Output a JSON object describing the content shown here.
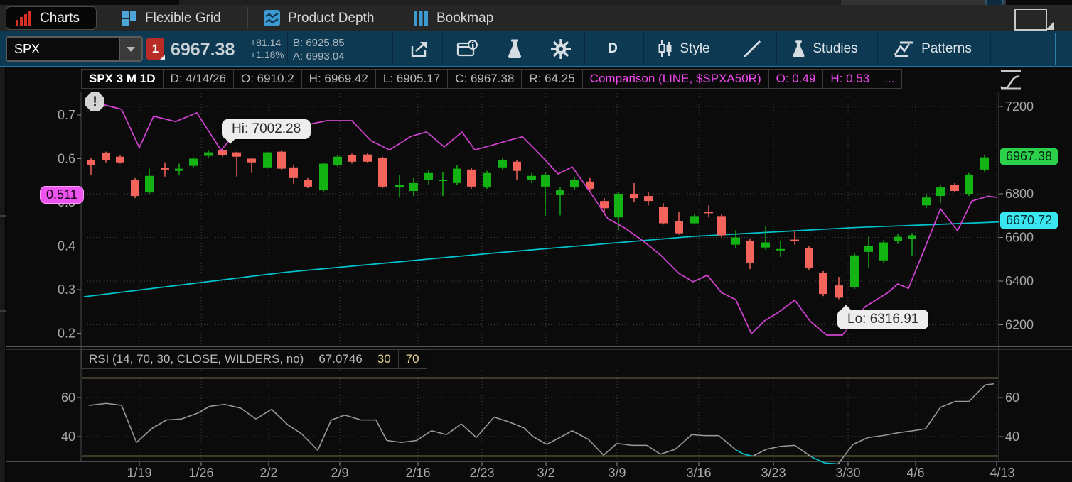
{
  "window": {
    "tabs": [
      {
        "label": "Charts",
        "active": true
      },
      {
        "label": "Flexible Grid",
        "active": false
      },
      {
        "label": "Product Depth",
        "active": false
      },
      {
        "label": "Bookmap",
        "active": false
      }
    ]
  },
  "toolbar": {
    "symbol": "SPX",
    "alert_badge": "1",
    "last_price": "6967.38",
    "change": "+81.14",
    "change_pct": "+1.18%",
    "bid": "B: 6925.85",
    "ask": "A: 6993.04",
    "timeframe_label": "D",
    "style_label": "Style",
    "studies_label": "Studies",
    "patterns_label": "Patterns"
  },
  "chart_header": {
    "title": "SPX 3 M 1D",
    "fields": [
      "D: 4/14/26",
      "O: 6910.2",
      "H: 6969.42",
      "L: 6905.17",
      "C: 6967.38",
      "R: 64.25"
    ],
    "comparison_fields": [
      "Comparison (LINE, $SPXA50R)",
      "O: 0.49",
      "H: 0.53",
      "..."
    ]
  },
  "main_chart": {
    "hi_tooltip": "Hi: 7002.28",
    "lo_tooltip": "Lo: 6316.91",
    "last_price_bubble": "6967.38",
    "ma_bubble": "6670.72",
    "comparison_bubble": "0.511",
    "right_axis_ticks": [
      {
        "v": 7200,
        "label": "7200"
      },
      {
        "v": 6800,
        "label": "6800"
      },
      {
        "v": 6600,
        "label": "6600"
      },
      {
        "v": 6400,
        "label": "6400"
      },
      {
        "v": 6200,
        "label": "6200"
      }
    ],
    "price_gridlines": [
      7200,
      7000,
      6800,
      6600,
      6400,
      6200
    ],
    "left_axis_ticks": [
      {
        "v": 0.7,
        "label": "0.7"
      },
      {
        "v": 0.6,
        "label": "0.6"
      },
      {
        "v": 0.5,
        "label": "0.5"
      },
      {
        "v": 0.4,
        "label": "0.4"
      },
      {
        "v": 0.3,
        "label": "0.3"
      },
      {
        "v": 0.2,
        "label": "0.2"
      }
    ],
    "x_axis": {
      "labels": [
        "1/19",
        "1/26",
        "2/2",
        "2/9",
        "2/16",
        "2/23",
        "3/2",
        "3/9",
        "3/16",
        "3/23",
        "3/30",
        "4/6",
        "4/13"
      ],
      "positions": [
        196,
        283,
        378,
        478,
        588,
        678,
        768,
        868,
        983,
        1088,
        1193,
        1288,
        1402
      ]
    },
    "colors": {
      "up": "#12b312",
      "down": "#f4635c",
      "comparison": "#d243d2",
      "ma": "#00c5cf",
      "grid": "#404040",
      "axis_text": "#a8a8a8"
    },
    "candles": [
      [
        128,
        6954,
        6964,
        6888,
        6931
      ],
      [
        149,
        6987,
        6993,
        6944,
        6954
      ],
      [
        169,
        6970,
        6977,
        6938,
        6944
      ],
      [
        190,
        6865,
        6872,
        6780,
        6790
      ],
      [
        210,
        6806,
        6915,
        6800,
        6882
      ],
      [
        232,
        6918,
        6944,
        6879,
        6911
      ],
      [
        252,
        6905,
        6938,
        6888,
        6915
      ],
      [
        272,
        6928,
        6967,
        6921,
        6961
      ],
      [
        293,
        6974,
        7000,
        6964,
        6990
      ],
      [
        313,
        7000,
        7002,
        6970,
        6977
      ],
      [
        333,
        6990,
        6993,
        6879,
        6970
      ],
      [
        354,
        6961,
        6964,
        6895,
        6944
      ],
      [
        376,
        6921,
        6993,
        6915,
        6990
      ],
      [
        396,
        6993,
        6997,
        6911,
        6915
      ],
      [
        413,
        6921,
        6931,
        6846,
        6872
      ],
      [
        433,
        6862,
        6872,
        6826,
        6833
      ],
      [
        455,
        6816,
        6944,
        6810,
        6938
      ],
      [
        475,
        6931,
        6977,
        6924,
        6970
      ],
      [
        495,
        6977,
        6984,
        6938,
        6947
      ],
      [
        517,
        6980,
        6987,
        6941,
        6947
      ],
      [
        538,
        6964,
        6970,
        6826,
        6833
      ],
      [
        562,
        6829,
        6888,
        6783,
        6839
      ],
      [
        582,
        6813,
        6872,
        6790,
        6849
      ],
      [
        603,
        6862,
        6911,
        6839,
        6895
      ],
      [
        623,
        6859,
        6898,
        6790,
        6865
      ],
      [
        643,
        6849,
        6931,
        6839,
        6915
      ],
      [
        663,
        6911,
        6921,
        6823,
        6833
      ],
      [
        685,
        6829,
        6905,
        6823,
        6895
      ],
      [
        707,
        6921,
        6964,
        6911,
        6954
      ],
      [
        727,
        6947,
        6954,
        6862,
        6905
      ],
      [
        748,
        6862,
        6895,
        6849,
        6882
      ],
      [
        767,
        6833,
        6898,
        6701,
        6888
      ],
      [
        788,
        6796,
        6829,
        6701,
        6816
      ],
      [
        808,
        6829,
        6879,
        6816,
        6865
      ],
      [
        830,
        6856,
        6872,
        6813,
        6823
      ],
      [
        850,
        6767,
        6780,
        6701,
        6734
      ],
      [
        870,
        6692,
        6806,
        6633,
        6800
      ],
      [
        892,
        6800,
        6849,
        6764,
        6780
      ],
      [
        912,
        6790,
        6806,
        6747,
        6767
      ],
      [
        933,
        6741,
        6757,
        6659,
        6665
      ],
      [
        955,
        6675,
        6718,
        6613,
        6619
      ],
      [
        977,
        6665,
        6708,
        6659,
        6698
      ],
      [
        997,
        6718,
        6747,
        6692,
        6711
      ],
      [
        1015,
        6698,
        6708,
        6600,
        6610
      ],
      [
        1035,
        6567,
        6633,
        6551,
        6600
      ],
      [
        1055,
        6583,
        6593,
        6455,
        6485
      ],
      [
        1077,
        6554,
        6649,
        6544,
        6577
      ],
      [
        1098,
        6541,
        6583,
        6511,
        6547
      ],
      [
        1118,
        6590,
        6633,
        6567,
        6583
      ],
      [
        1138,
        6551,
        6560,
        6452,
        6462
      ],
      [
        1158,
        6436,
        6446,
        6331,
        6341
      ],
      [
        1180,
        6380,
        6419,
        6317,
        6324
      ],
      [
        1202,
        6374,
        6528,
        6364,
        6518
      ],
      [
        1222,
        6534,
        6603,
        6462,
        6560
      ],
      [
        1243,
        6495,
        6587,
        6485,
        6577
      ],
      [
        1263,
        6583,
        6616,
        6570,
        6603
      ],
      [
        1283,
        6593,
        6620,
        6518,
        6610
      ],
      [
        1303,
        6747,
        6800,
        6734,
        6783
      ],
      [
        1323,
        6790,
        6839,
        6757,
        6829
      ],
      [
        1343,
        6839,
        6849,
        6806,
        6813
      ],
      [
        1363,
        6800,
        6895,
        6790,
        6888
      ],
      [
        1385,
        6911,
        6980,
        6898,
        6967
      ]
    ],
    "comparison_line": [
      [
        140,
        0.726
      ],
      [
        171,
        0.713
      ],
      [
        196,
        0.625
      ],
      [
        216,
        0.697
      ],
      [
        247,
        0.685
      ],
      [
        277,
        0.705
      ],
      [
        311,
        0.619
      ],
      [
        340,
        0.677
      ],
      [
        370,
        0.69
      ],
      [
        400,
        0.664
      ],
      [
        430,
        0.677
      ],
      [
        460,
        0.687
      ],
      [
        495,
        0.687
      ],
      [
        522,
        0.641
      ],
      [
        548,
        0.62
      ],
      [
        578,
        0.651
      ],
      [
        600,
        0.661
      ],
      [
        625,
        0.627
      ],
      [
        650,
        0.661
      ],
      [
        668,
        0.62
      ],
      [
        697,
        0.633
      ],
      [
        718,
        0.643
      ],
      [
        735,
        0.65
      ],
      [
        760,
        0.609
      ],
      [
        785,
        0.565
      ],
      [
        805,
        0.581
      ],
      [
        830,
        0.524
      ],
      [
        855,
        0.463
      ],
      [
        880,
        0.44
      ],
      [
        905,
        0.411
      ],
      [
        930,
        0.378
      ],
      [
        955,
        0.337
      ],
      [
        975,
        0.318
      ],
      [
        995,
        0.333
      ],
      [
        1015,
        0.293
      ],
      [
        1035,
        0.277
      ],
      [
        1057,
        0.199
      ],
      [
        1075,
        0.228
      ],
      [
        1095,
        0.248
      ],
      [
        1118,
        0.276
      ],
      [
        1140,
        0.227
      ],
      [
        1163,
        0.196
      ],
      [
        1185,
        0.196
      ],
      [
        1217,
        0.261
      ],
      [
        1248,
        0.292
      ],
      [
        1263,
        0.313
      ],
      [
        1278,
        0.303
      ],
      [
        1300,
        0.391
      ],
      [
        1323,
        0.485
      ],
      [
        1347,
        0.435
      ],
      [
        1367,
        0.503
      ],
      [
        1390,
        0.514
      ],
      [
        1403,
        0.511
      ]
    ],
    "ma_line": [
      [
        118,
        6328
      ],
      [
        400,
        6440
      ],
      [
        700,
        6530
      ],
      [
        975,
        6605
      ],
      [
        1200,
        6645
      ],
      [
        1405,
        6671
      ]
    ]
  },
  "rsi": {
    "label": "RSI (14, 70, 30, CLOSE, WILDERS, no)",
    "value": "67.0746",
    "oversold": "30",
    "overbought": "70",
    "band_values": [
      70,
      30
    ],
    "axis_ticks": [
      {
        "v": 60,
        "label": "60"
      },
      {
        "v": 40,
        "label": "40"
      }
    ],
    "colors": {
      "line": "#9a9a9a",
      "oversold_line": "#00c5cf",
      "bands": "#dcc77e"
    },
    "series": [
      [
        125,
        56
      ],
      [
        150,
        57
      ],
      [
        171,
        56
      ],
      [
        192,
        37
      ],
      [
        213,
        44
      ],
      [
        234,
        48.5
      ],
      [
        255,
        49
      ],
      [
        278,
        52
      ],
      [
        295,
        55.5
      ],
      [
        316,
        56.5
      ],
      [
        339,
        54.5
      ],
      [
        360,
        49
      ],
      [
        382,
        54
      ],
      [
        405,
        46
      ],
      [
        424,
        41.5
      ],
      [
        447,
        33
      ],
      [
        466,
        48.5
      ],
      [
        485,
        51
      ],
      [
        508,
        48.5
      ],
      [
        529,
        48.5
      ],
      [
        544,
        38
      ],
      [
        565,
        37
      ],
      [
        586,
        38
      ],
      [
        607,
        43
      ],
      [
        628,
        41
      ],
      [
        649,
        46.5
      ],
      [
        670,
        39.5
      ],
      [
        695,
        50
      ],
      [
        716,
        47.5
      ],
      [
        737,
        44.5
      ],
      [
        750,
        40
      ],
      [
        769,
        36
      ],
      [
        790,
        40
      ],
      [
        805,
        43
      ],
      [
        828,
        38.5
      ],
      [
        849,
        30.5
      ],
      [
        868,
        36.5
      ],
      [
        889,
        35.5
      ],
      [
        910,
        35.5
      ],
      [
        929,
        31
      ],
      [
        950,
        33.5
      ],
      [
        973,
        41
      ],
      [
        990,
        40.5
      ],
      [
        1011,
        40.5
      ],
      [
        1036,
        33
      ],
      [
        1046,
        31
      ],
      [
        1059,
        30
      ],
      [
        1078,
        33.5
      ],
      [
        1098,
        35
      ],
      [
        1118,
        35.5
      ],
      [
        1142,
        29.5
      ],
      [
        1160,
        26.5
      ],
      [
        1179,
        26
      ],
      [
        1200,
        36
      ],
      [
        1221,
        39.5
      ],
      [
        1242,
        40.5
      ],
      [
        1264,
        42
      ],
      [
        1285,
        43
      ],
      [
        1302,
        44
      ],
      [
        1323,
        55
      ],
      [
        1344,
        58
      ],
      [
        1363,
        58
      ],
      [
        1386,
        66.5
      ],
      [
        1398,
        67
      ]
    ],
    "oversold_ranges": [
      [
        1032,
        1062
      ],
      [
        1138,
        1182
      ]
    ]
  }
}
